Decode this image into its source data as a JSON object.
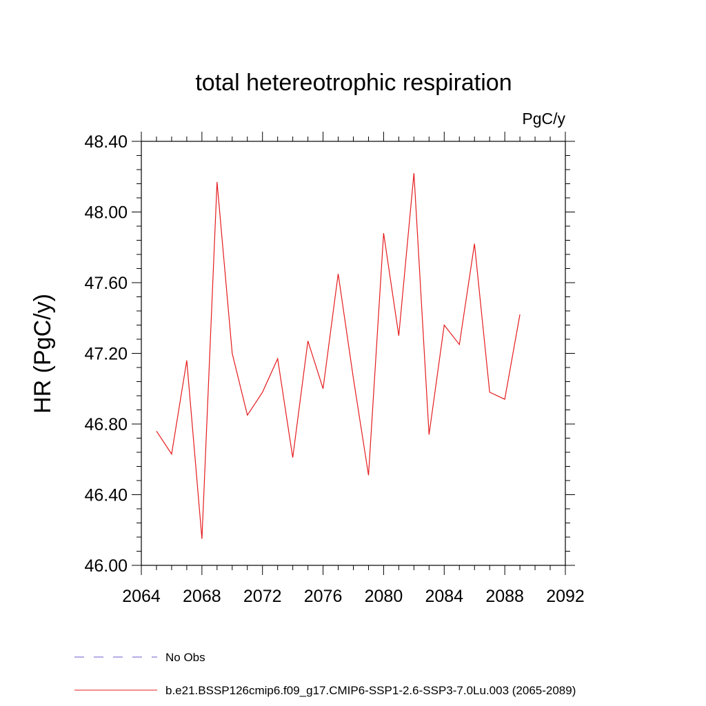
{
  "chart_data": {
    "type": "line",
    "title": "total hetereotrophic respiration",
    "units": "PgC/y",
    "ylabel": "HR  (PgC/y)",
    "xlabel": "",
    "xlim": [
      2064,
      2092
    ],
    "ylim": [
      46.0,
      48.4
    ],
    "xticks": [
      2064,
      2068,
      2072,
      2076,
      2080,
      2084,
      2088,
      2092
    ],
    "xtick_labels": [
      "2064",
      "2068",
      "2072",
      "2076",
      "2080",
      "2084",
      "2088",
      "2092"
    ],
    "yticks": [
      46.0,
      46.4,
      46.8,
      47.2,
      47.6,
      48.0,
      48.4
    ],
    "ytick_labels": [
      "46.00",
      "46.40",
      "46.80",
      "47.20",
      "47.60",
      "48.00",
      "48.40"
    ],
    "grid": false,
    "legend_position": "bottom-left",
    "series": [
      {
        "name": "b.e21.BSSP126cmip6.f09_g17.CMIP6-SSP1-2.6-SSP3-7.0Lu.003 (2065-2089)",
        "color": "#e41a1c",
        "style": "solid",
        "x": [
          2065,
          2066,
          2067,
          2068,
          2069,
          2070,
          2071,
          2072,
          2073,
          2074,
          2075,
          2076,
          2077,
          2078,
          2079,
          2080,
          2081,
          2082,
          2083,
          2084,
          2085,
          2086,
          2087,
          2088,
          2089
        ],
        "y": [
          46.76,
          46.63,
          47.16,
          46.15,
          48.17,
          47.2,
          46.85,
          46.98,
          47.17,
          46.61,
          47.27,
          47.0,
          47.65,
          47.06,
          46.51,
          47.88,
          47.3,
          48.22,
          46.74,
          47.36,
          47.25,
          47.82,
          46.98,
          46.94,
          47.42
        ]
      }
    ],
    "legend": [
      {
        "label": "No Obs",
        "color": "#6a5acd",
        "style": "dashed"
      },
      {
        "label": "b.e21.BSSP126cmip6.f09_g17.CMIP6-SSP1-2.6-SSP3-7.0Lu.003 (2065-2089)",
        "color": "#e41a1c",
        "style": "solid"
      }
    ]
  }
}
